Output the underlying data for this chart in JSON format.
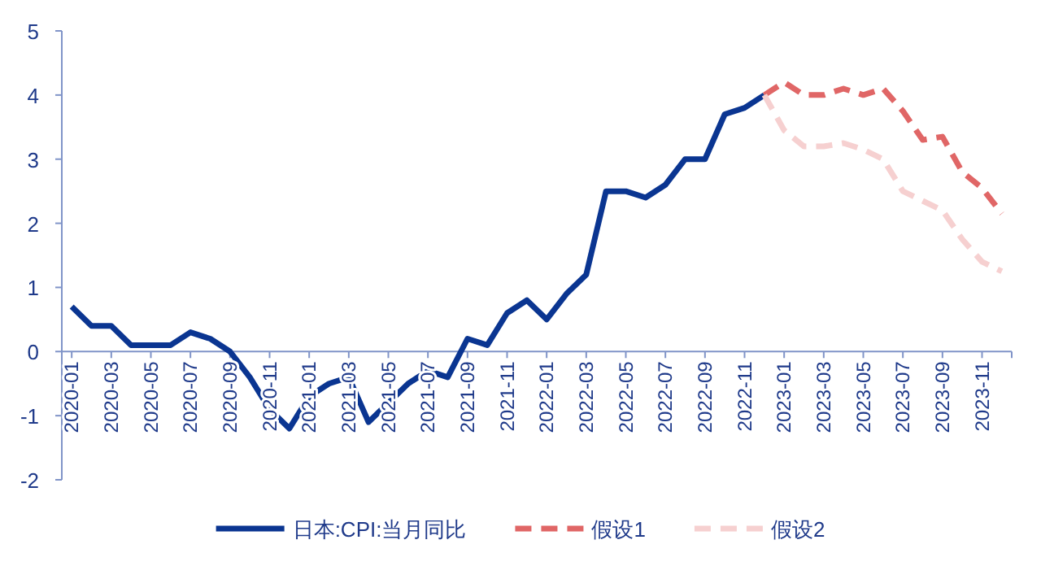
{
  "chart_data": {
    "type": "line",
    "x": [
      "2020-01",
      "2020-02",
      "2020-03",
      "2020-04",
      "2020-05",
      "2020-06",
      "2020-07",
      "2020-08",
      "2020-09",
      "2020-10",
      "2020-11",
      "2020-12",
      "2021-01",
      "2021-02",
      "2021-03",
      "2021-04",
      "2021-05",
      "2021-06",
      "2021-07",
      "2021-08",
      "2021-09",
      "2021-10",
      "2021-11",
      "2021-12",
      "2022-01",
      "2022-02",
      "2022-03",
      "2022-04",
      "2022-05",
      "2022-06",
      "2022-07",
      "2022-08",
      "2022-09",
      "2022-10",
      "2022-11",
      "2022-12"
    ],
    "series": [
      {
        "name": "日本:CPI:当月同比",
        "color": "#0a3591",
        "line_style": "solid",
        "values": [
          0.7,
          0.4,
          0.4,
          0.1,
          0.1,
          0.1,
          0.3,
          0.2,
          0.0,
          -0.4,
          -0.9,
          -1.2,
          -0.7,
          -0.5,
          -0.4,
          -1.1,
          -0.8,
          -0.5,
          -0.3,
          -0.4,
          0.2,
          0.1,
          0.6,
          0.8,
          0.5,
          0.9,
          1.2,
          2.5,
          2.5,
          2.4,
          2.6,
          3.0,
          3.0,
          3.7,
          3.8,
          4.0
        ]
      },
      {
        "name": "假设1",
        "color": "#e06666",
        "line_style": "dashed",
        "x": [
          "2022-12",
          "2023-01",
          "2023-02",
          "2023-03",
          "2023-04",
          "2023-05",
          "2023-06",
          "2023-07",
          "2023-08",
          "2023-09",
          "2023-10",
          "2023-11",
          "2023-12"
        ],
        "values": [
          4.0,
          4.2,
          4.0,
          4.0,
          4.1,
          4.0,
          4.1,
          3.75,
          3.3,
          3.35,
          2.8,
          2.55,
          2.15
        ]
      },
      {
        "name": "假设2",
        "color": "#f6d0d0",
        "line_style": "dashed",
        "x": [
          "2022-12",
          "2023-01",
          "2023-02",
          "2023-03",
          "2023-04",
          "2023-05",
          "2023-06",
          "2023-07",
          "2023-08",
          "2023-09",
          "2023-10",
          "2023-11",
          "2023-12"
        ],
        "values": [
          4.0,
          3.45,
          3.2,
          3.2,
          3.25,
          3.15,
          3.0,
          2.5,
          2.35,
          2.2,
          1.75,
          1.4,
          1.25
        ]
      }
    ],
    "xlim": [
      "2019-12-16",
      "2023-12-16"
    ],
    "xticks": [
      "2020-01",
      "2020-03",
      "2020-05",
      "2020-07",
      "2020-09",
      "2020-11",
      "2021-01",
      "2021-03",
      "2021-05",
      "2021-07",
      "2021-09",
      "2021-11",
      "2022-01",
      "2022-03",
      "2022-05",
      "2022-07",
      "2022-09",
      "2022-11",
      "2023-01",
      "2023-03",
      "2023-05",
      "2023-07",
      "2023-09",
      "2023-11"
    ],
    "ylim": [
      -2,
      5
    ],
    "yticks": [
      -2,
      -1,
      0,
      1,
      2,
      3,
      4,
      5
    ],
    "grid": false,
    "legend": "bottom",
    "marker": "none"
  }
}
